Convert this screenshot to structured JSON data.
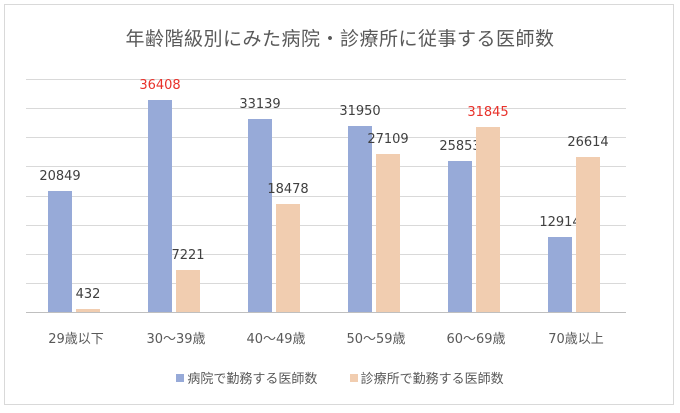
{
  "chart_data": {
    "type": "bar",
    "title": "年齢階級別にみた病院・診療所に従事する医師数",
    "categories": [
      "29歳以下",
      "30〜39歳",
      "40〜49歳",
      "50〜59歳",
      "60〜69歳",
      "70歳以上"
    ],
    "series": [
      {
        "name": "病院で勤務する医師数",
        "color": "#97aad8",
        "values": [
          20849,
          36408,
          33139,
          31950,
          25853,
          12914
        ]
      },
      {
        "name": "診療所で勤務する医師数",
        "color": "#f1cdb0",
        "values": [
          432,
          7221,
          18478,
          27109,
          31845,
          26614
        ]
      }
    ],
    "highlighted_labels": [
      {
        "series": 0,
        "category": "30〜39歳",
        "value": 36408,
        "color": "#e8312a"
      },
      {
        "series": 1,
        "category": "60〜69歳",
        "value": 31845,
        "color": "#e8312a"
      }
    ],
    "xlabel": "",
    "ylabel": "",
    "ylim": [
      0,
      40000
    ],
    "gridline_step": 5000,
    "grid": true,
    "y_axis_labels_shown": false,
    "legend_position": "bottom"
  }
}
